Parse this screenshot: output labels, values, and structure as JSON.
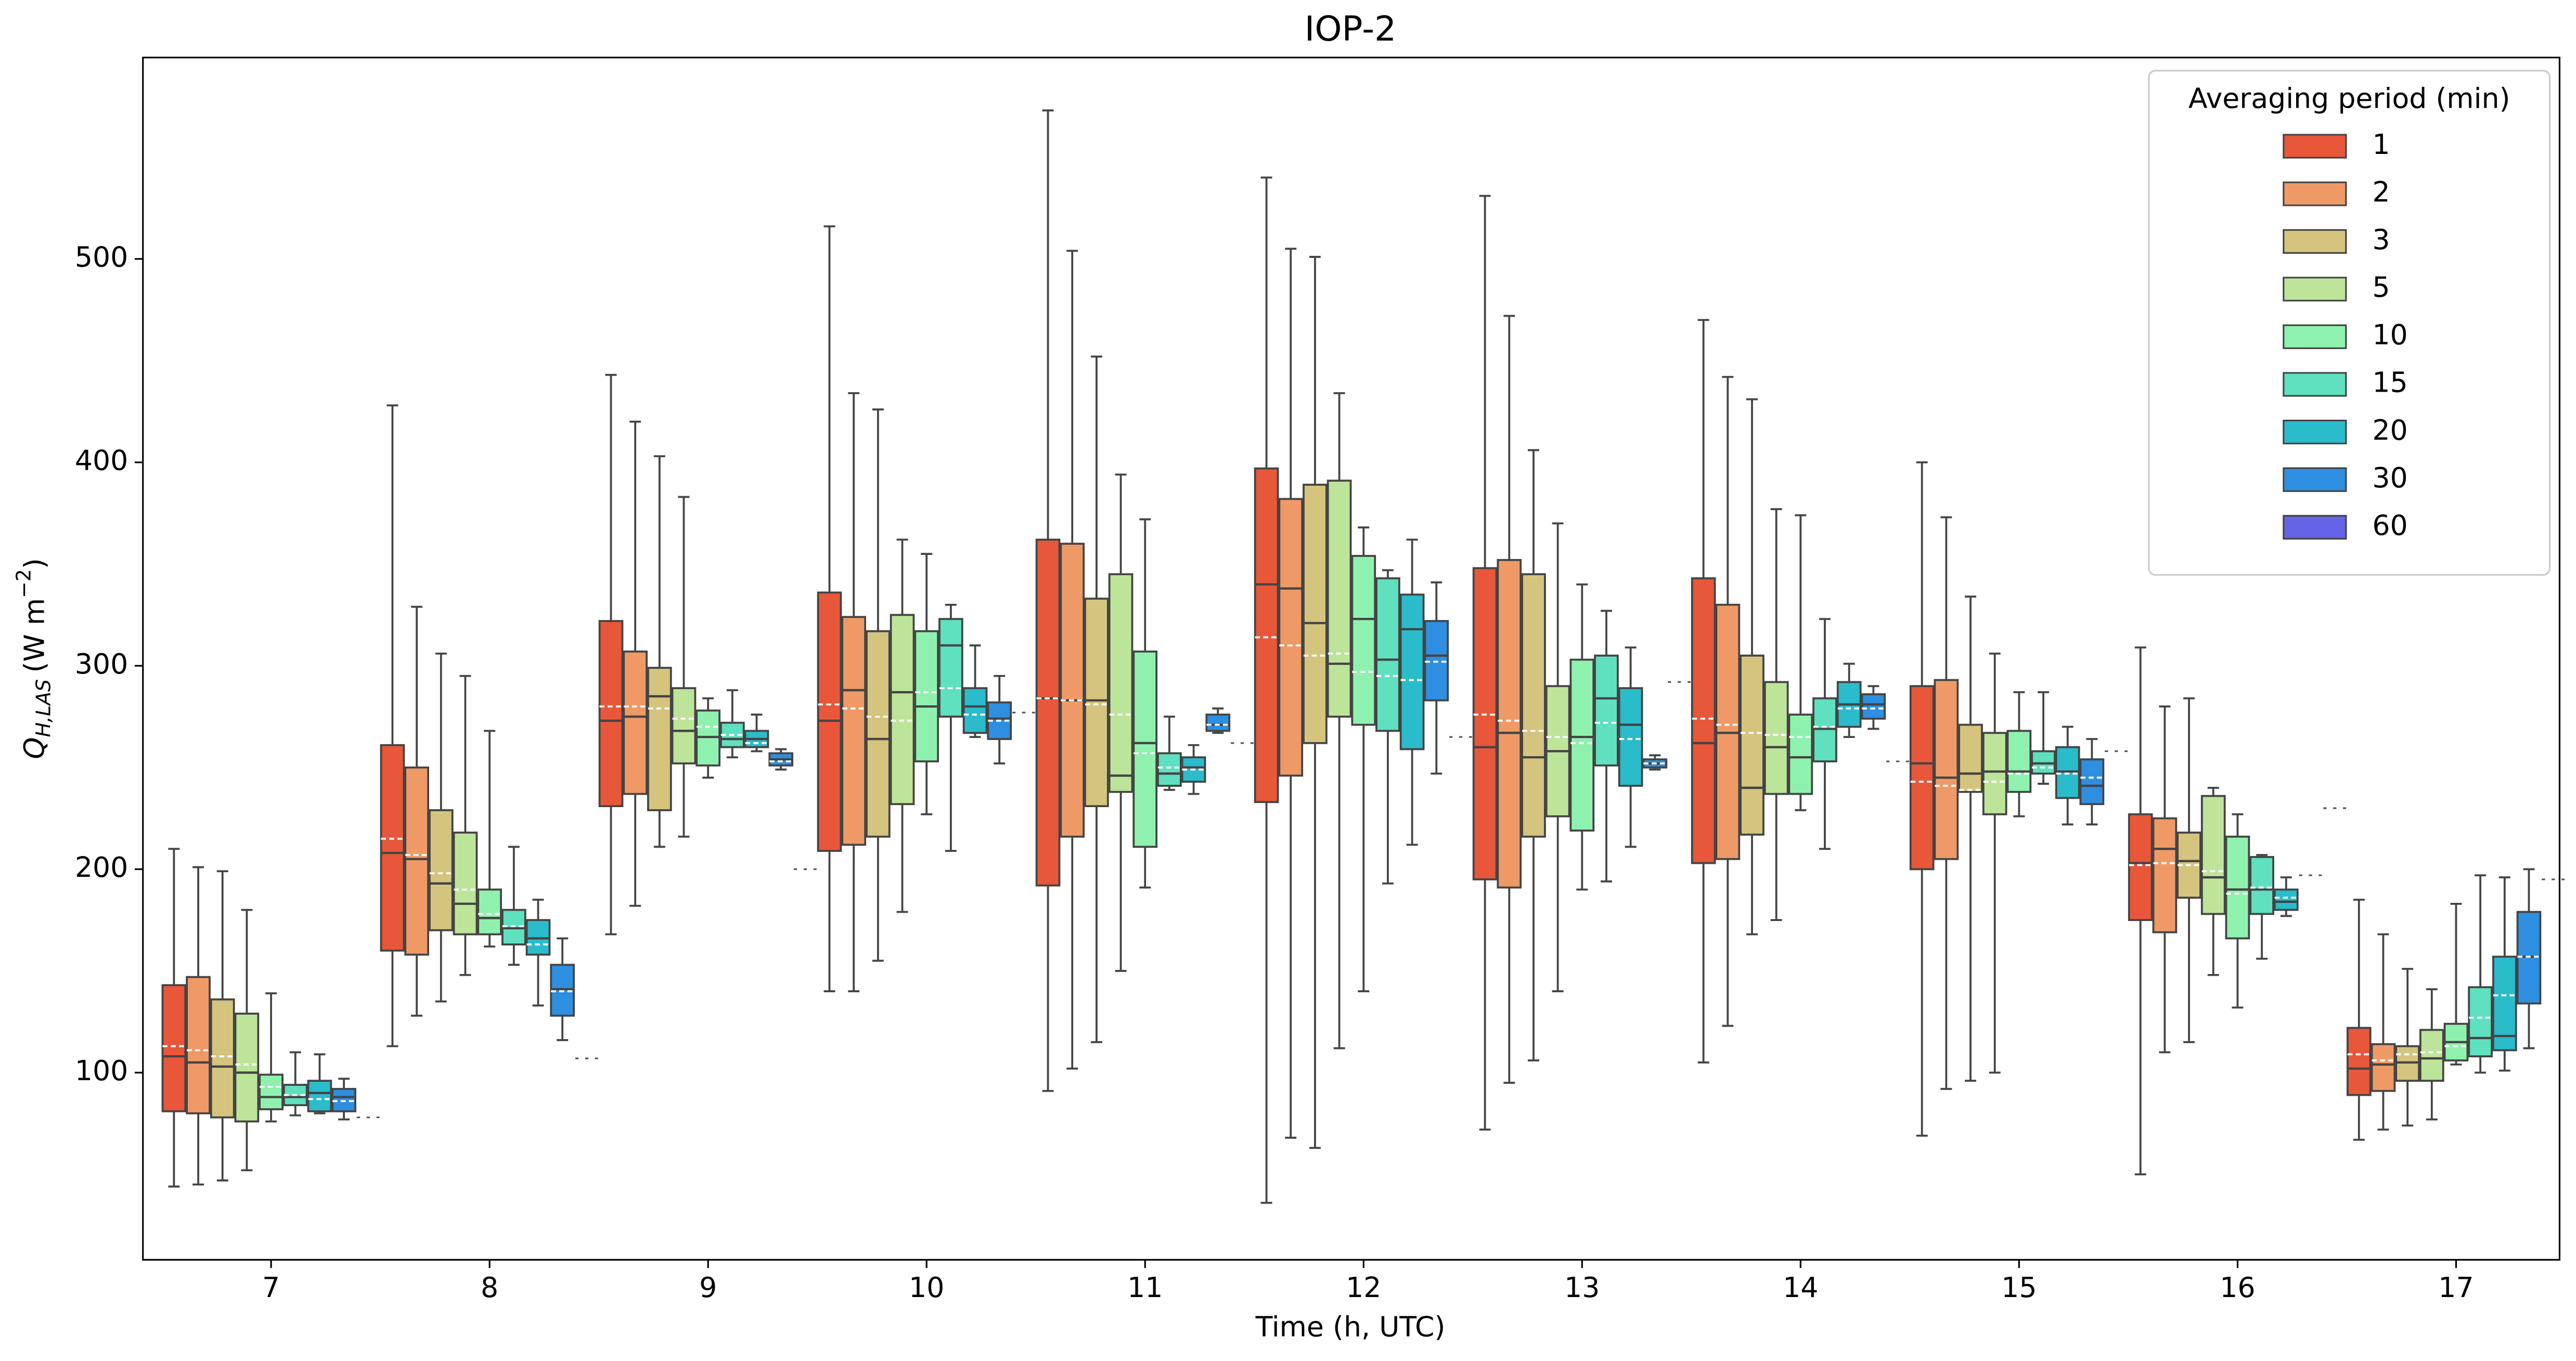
{
  "chart_data": {
    "type": "box",
    "title": "IOP-2",
    "x_label": "Time (h, UTC)",
    "y_label": {
      "symbol": "Q",
      "subscript": "H,LAS",
      "unit": "(W m",
      "unit_exponent": "−2",
      "unit_close": ")"
    },
    "categories": [
      "7",
      "8",
      "9",
      "10",
      "11",
      "12",
      "13",
      "14",
      "15",
      "16",
      "17"
    ],
    "ylim": [
      8,
      599
    ],
    "yticks": [
      100,
      200,
      300,
      400,
      500
    ],
    "legend_title": "Averaging period (min)",
    "legend_position": "upper right",
    "series": [
      {
        "name": "1",
        "color": "#e8573a",
        "whislo": [
          44,
          113,
          168,
          140,
          91,
          36,
          72,
          105,
          69,
          50,
          67
        ],
        "q1": [
          81,
          160,
          231,
          209,
          192,
          233,
          195,
          203,
          200,
          175,
          89
        ],
        "med": [
          108,
          208,
          273,
          273,
          284,
          340,
          260,
          262,
          252,
          203,
          102
        ],
        "q3": [
          143,
          261,
          322,
          336,
          362,
          397,
          348,
          343,
          290,
          227,
          122
        ],
        "whishi": [
          210,
          428,
          443,
          516,
          573,
          540,
          531,
          470,
          400,
          309,
          185
        ],
        "mean": [
          113,
          215,
          280,
          281,
          284,
          314,
          276,
          274,
          243,
          202,
          109
        ]
      },
      {
        "name": "2",
        "color": "#ef9a66",
        "whislo": [
          45,
          128,
          182,
          140,
          102,
          68,
          95,
          123,
          92,
          110,
          72
        ],
        "q1": [
          80,
          158,
          237,
          212,
          216,
          246,
          191,
          205,
          205,
          169,
          91
        ],
        "med": [
          105,
          205,
          275,
          288,
          283,
          338,
          267,
          267,
          245,
          210,
          104
        ],
        "q3": [
          147,
          250,
          307,
          324,
          360,
          382,
          352,
          330,
          293,
          225,
          114
        ],
        "whishi": [
          201,
          329,
          420,
          434,
          504,
          505,
          472,
          442,
          373,
          280,
          168
        ],
        "mean": [
          111,
          207,
          280,
          279,
          283,
          310,
          273,
          271,
          241,
          203,
          106
        ]
      },
      {
        "name": "3",
        "color": "#d4c47e",
        "whislo": [
          47,
          135,
          211,
          155,
          115,
          63,
          106,
          168,
          96,
          115,
          74
        ],
        "q1": [
          78,
          170,
          229,
          216,
          231,
          262,
          216,
          217,
          238,
          186,
          96
        ],
        "med": [
          103,
          193,
          285,
          264,
          283,
          321,
          255,
          240,
          247,
          204,
          105
        ],
        "q3": [
          136,
          229,
          299,
          317,
          333,
          389,
          345,
          305,
          271,
          218,
          113
        ],
        "whishi": [
          199,
          306,
          403,
          426,
          452,
          501,
          406,
          431,
          334,
          284,
          151
        ],
        "mean": [
          108,
          198,
          279,
          275,
          281,
          305,
          268,
          267,
          239,
          202,
          109
        ]
      },
      {
        "name": "5",
        "color": "#bde59a",
        "whislo": [
          52,
          148,
          216,
          179,
          150,
          112,
          140,
          175,
          100,
          148,
          77
        ],
        "q1": [
          76,
          168,
          252,
          232,
          238,
          275,
          226,
          237,
          227,
          178,
          96
        ],
        "med": [
          100,
          183,
          268,
          287,
          246,
          301,
          258,
          260,
          248,
          196,
          107
        ],
        "q3": [
          129,
          218,
          289,
          325,
          345,
          391,
          290,
          292,
          267,
          236,
          121
        ],
        "whishi": [
          180,
          295,
          383,
          362,
          394,
          434,
          370,
          377,
          306,
          240,
          141
        ],
        "mean": [
          104,
          190,
          274,
          273,
          276,
          306,
          265,
          266,
          243,
          199,
          110
        ]
      },
      {
        "name": "10",
        "color": "#8ef2ae",
        "whislo": [
          76,
          162,
          245,
          227,
          191,
          140,
          190,
          229,
          226,
          132,
          104
        ],
        "q1": [
          82,
          168,
          251,
          253,
          211,
          271,
          219,
          237,
          238,
          166,
          106
        ],
        "med": [
          88,
          176,
          265,
          280,
          262,
          323,
          265,
          255,
          248,
          190,
          115
        ],
        "q3": [
          99,
          190,
          278,
          317,
          307,
          354,
          303,
          276,
          268,
          216,
          124
        ],
        "whishi": [
          139,
          268,
          284,
          355,
          372,
          368,
          340,
          374,
          287,
          227,
          183
        ],
        "mean": [
          93,
          178,
          270,
          287,
          257,
          297,
          262,
          265,
          247,
          188,
          113
        ]
      },
      {
        "name": "15",
        "color": "#5fe0bf",
        "whislo": [
          79,
          153,
          255,
          209,
          239,
          193,
          194,
          210,
          242,
          156,
          100
        ],
        "q1": [
          84,
          163,
          260,
          275,
          241,
          268,
          251,
          253,
          247,
          178,
          108
        ],
        "med": [
          88,
          171,
          264,
          310,
          247,
          303,
          284,
          269,
          252,
          190,
          117
        ],
        "q3": [
          94,
          180,
          272,
          323,
          257,
          343,
          305,
          284,
          258,
          206,
          142
        ],
        "whishi": [
          110,
          211,
          288,
          330,
          275,
          347,
          327,
          323,
          287,
          207,
          197
        ],
        "mean": [
          89,
          172,
          266,
          289,
          250,
          295,
          272,
          270,
          250,
          191,
          127
        ]
      },
      {
        "name": "20",
        "color": "#2bbccc",
        "whislo": [
          80,
          133,
          258,
          265,
          237,
          212,
          211,
          265,
          222,
          177,
          101
        ],
        "q1": [
          81,
          158,
          260,
          267,
          243,
          259,
          241,
          270,
          235,
          180,
          111
        ],
        "med": [
          90,
          166,
          264,
          280,
          250,
          318,
          271,
          281,
          248,
          184,
          118
        ],
        "q3": [
          96,
          175,
          268,
          289,
          255,
          335,
          289,
          292,
          260,
          190,
          157
        ],
        "whishi": [
          109,
          185,
          276,
          310,
          261,
          362,
          309,
          301,
          270,
          196,
          196
        ],
        "mean": [
          87,
          163,
          262,
          276,
          249,
          293,
          264,
          279,
          247,
          186,
          138
        ]
      },
      {
        "name": "30",
        "color": "#2e8fe0",
        "whislo": [
          77,
          116,
          249,
          252,
          267,
          247,
          249,
          269,
          222,
          null,
          112
        ],
        "q1": [
          81,
          128,
          251,
          264,
          268,
          283,
          250,
          274,
          232,
          null,
          134
        ],
        "med": [
          88,
          141,
          254,
          274,
          271,
          305,
          252,
          281,
          241,
          197,
          157
        ],
        "q3": [
          92,
          153,
          257,
          282,
          276,
          322,
          254,
          286,
          254,
          null,
          179
        ],
        "whishi": [
          97,
          166,
          259,
          295,
          279,
          341,
          256,
          290,
          264,
          null,
          200
        ],
        "mean": [
          86,
          140,
          253,
          273,
          271,
          302,
          252,
          279,
          245,
          null,
          157
        ]
      },
      {
        "name": "60",
        "color": "#6563e6",
        "whislo": [
          null,
          null,
          null,
          null,
          null,
          null,
          null,
          null,
          null,
          null,
          null
        ],
        "q1": [
          null,
          null,
          null,
          null,
          null,
          null,
          null,
          null,
          null,
          null,
          null
        ],
        "med": [
          78,
          107,
          200,
          277,
          262,
          265,
          292,
          253,
          258,
          230,
          195
        ],
        "q3": [
          null,
          null,
          null,
          null,
          null,
          null,
          null,
          null,
          null,
          null,
          null
        ],
        "whishi": [
          null,
          null,
          null,
          null,
          null,
          null,
          null,
          null,
          null,
          null,
          null
        ],
        "mean": [
          null,
          null,
          null,
          null,
          null,
          null,
          null,
          null,
          null,
          null,
          null
        ]
      }
    ]
  }
}
